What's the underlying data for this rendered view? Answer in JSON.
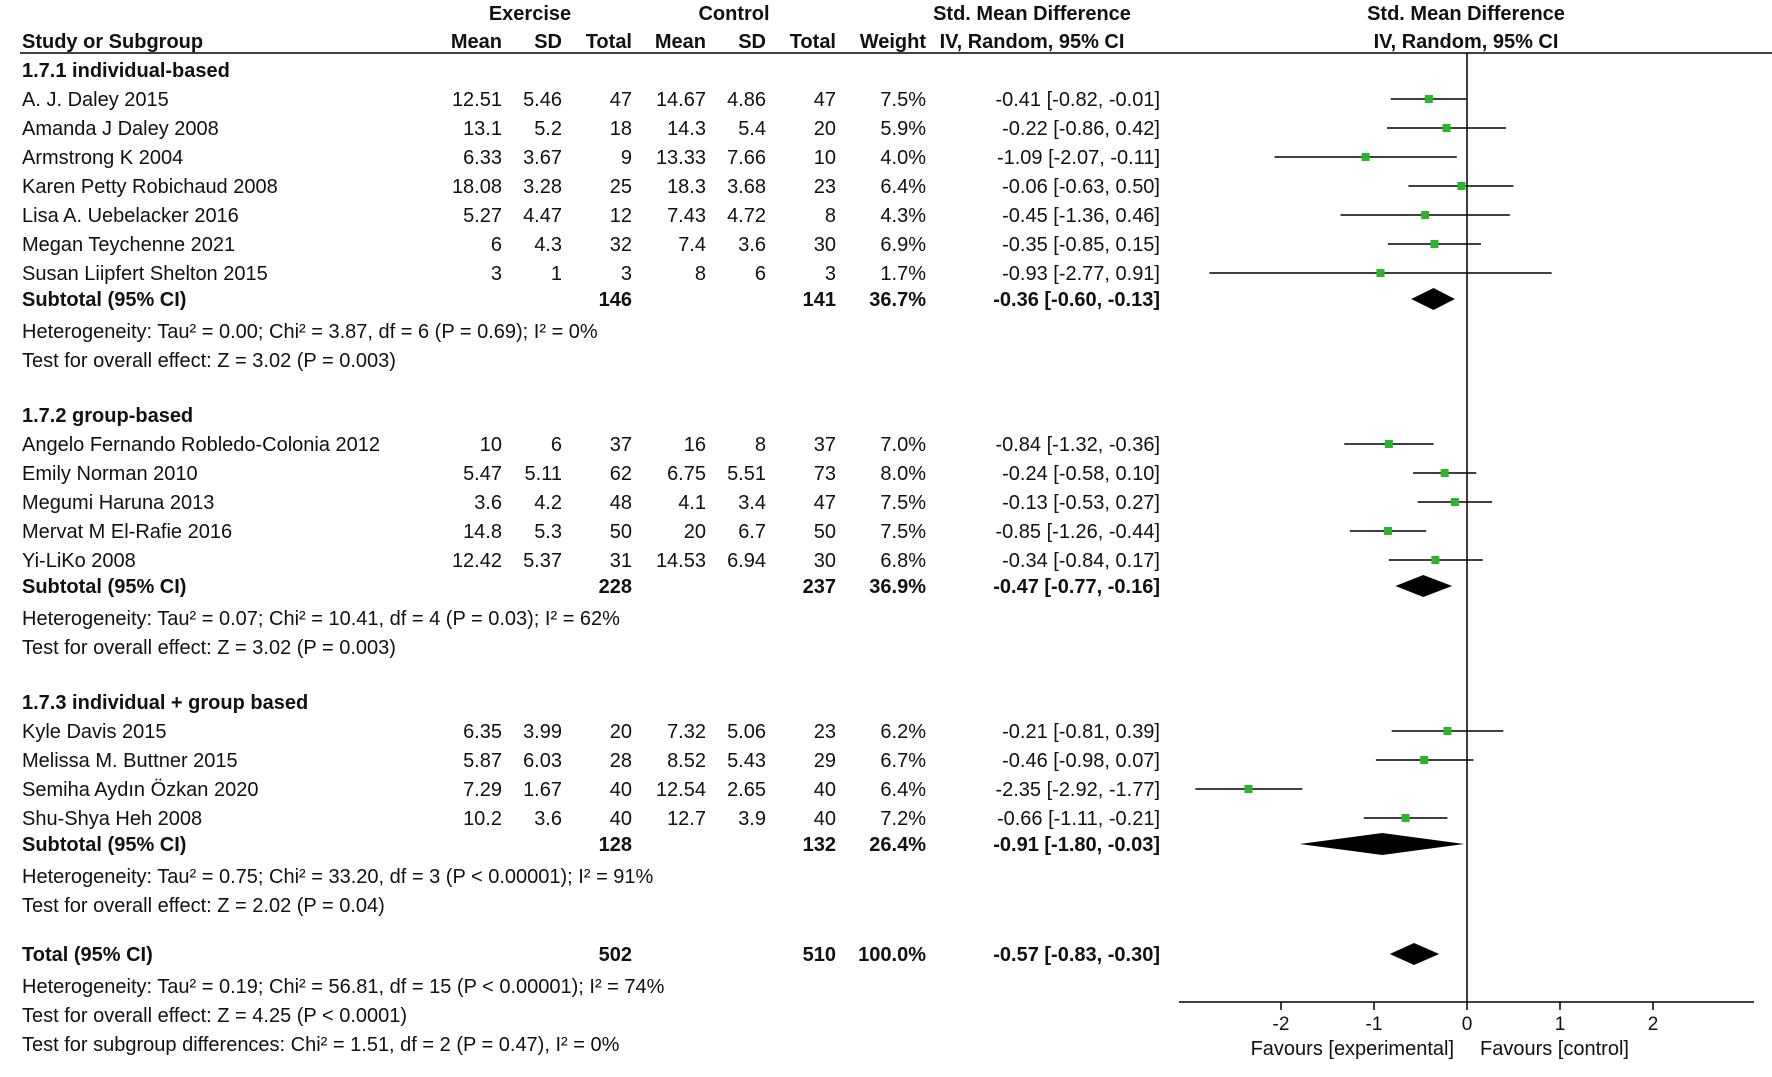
{
  "headers": {
    "group1": "Exercise",
    "group2": "Control",
    "smd_left": "Std. Mean Difference",
    "smd_left_sub": "IV, Random, 95% CI",
    "smd_right": "Std. Mean Difference",
    "smd_right_sub": "IV, Random, 95% CI",
    "study": "Study or Subgroup",
    "mean1": "Mean",
    "sd1": "SD",
    "total1": "Total",
    "mean2": "Mean",
    "sd2": "SD",
    "total2": "Total",
    "weight": "Weight"
  },
  "chart_data": {
    "type": "forest",
    "title": "Std. Mean Difference, IV, Random, 95% CI",
    "x_ticks": [
      -2,
      -1,
      0,
      1,
      2
    ],
    "xlim": [
      -3,
      3
    ],
    "favours_left": "Favours [experimental]",
    "favours_right": "Favours [control]",
    "colors": {
      "study_marker": "#2bb52b",
      "diamond": "#000000",
      "line": "#000000"
    },
    "subgroups": [
      {
        "name": "1.7.1 individual-based",
        "studies": [
          {
            "study": "A. J. Daley 2015",
            "m1": "12.51",
            "sd1": "5.46",
            "n1": "47",
            "m2": "14.67",
            "sd2": "4.86",
            "n2": "47",
            "w": "7.5%",
            "ci_text": "-0.41 [-0.82, -0.01]",
            "est": -0.41,
            "lo": -0.82,
            "hi": -0.01
          },
          {
            "study": "Amanda J Daley 2008",
            "m1": "13.1",
            "sd1": "5.2",
            "n1": "18",
            "m2": "14.3",
            "sd2": "5.4",
            "n2": "20",
            "w": "5.9%",
            "ci_text": "-0.22 [-0.86, 0.42]",
            "est": -0.22,
            "lo": -0.86,
            "hi": 0.42
          },
          {
            "study": "Armstrong K 2004",
            "m1": "6.33",
            "sd1": "3.67",
            "n1": "9",
            "m2": "13.33",
            "sd2": "7.66",
            "n2": "10",
            "w": "4.0%",
            "ci_text": "-1.09 [-2.07, -0.11]",
            "est": -1.09,
            "lo": -2.07,
            "hi": -0.11
          },
          {
            "study": "Karen Petty Robichaud 2008",
            "m1": "18.08",
            "sd1": "3.28",
            "n1": "25",
            "m2": "18.3",
            "sd2": "3.68",
            "n2": "23",
            "w": "6.4%",
            "ci_text": "-0.06 [-0.63, 0.50]",
            "est": -0.06,
            "lo": -0.63,
            "hi": 0.5
          },
          {
            "study": "Lisa A. Uebelacker 2016",
            "m1": "5.27",
            "sd1": "4.47",
            "n1": "12",
            "m2": "7.43",
            "sd2": "4.72",
            "n2": "8",
            "w": "4.3%",
            "ci_text": "-0.45 [-1.36, 0.46]",
            "est": -0.45,
            "lo": -1.36,
            "hi": 0.46
          },
          {
            "study": "Megan Teychenne 2021",
            "m1": "6",
            "sd1": "4.3",
            "n1": "32",
            "m2": "7.4",
            "sd2": "3.6",
            "n2": "30",
            "w": "6.9%",
            "ci_text": "-0.35 [-0.85, 0.15]",
            "est": -0.35,
            "lo": -0.85,
            "hi": 0.15
          },
          {
            "study": "Susan Liipfert Shelton 2015",
            "m1": "3",
            "sd1": "1",
            "n1": "3",
            "m2": "8",
            "sd2": "6",
            "n2": "3",
            "w": "1.7%",
            "ci_text": "-0.93 [-2.77, 0.91]",
            "est": -0.93,
            "lo": -2.77,
            "hi": 0.91
          }
        ],
        "subtotal": {
          "label": "Subtotal (95% CI)",
          "n1": "146",
          "n2": "141",
          "w": "36.7%",
          "ci_text": "-0.36 [-0.60, -0.13]",
          "est": -0.36,
          "lo": -0.6,
          "hi": -0.13
        },
        "heterogeneity": "Heterogeneity: Tau² = 0.00; Chi² = 3.87, df = 6 (P = 0.69); I² = 0%",
        "overall": "Test for overall effect: Z = 3.02 (P = 0.003)"
      },
      {
        "name": "1.7.2 group-based",
        "studies": [
          {
            "study": "Angelo Fernando Robledo-Colonia 2012",
            "m1": "10",
            "sd1": "6",
            "n1": "37",
            "m2": "16",
            "sd2": "8",
            "n2": "37",
            "w": "7.0%",
            "ci_text": "-0.84 [-1.32, -0.36]",
            "est": -0.84,
            "lo": -1.32,
            "hi": -0.36
          },
          {
            "study": "Emily Norman 2010",
            "m1": "5.47",
            "sd1": "5.11",
            "n1": "62",
            "m2": "6.75",
            "sd2": "5.51",
            "n2": "73",
            "w": "8.0%",
            "ci_text": "-0.24 [-0.58, 0.10]",
            "est": -0.24,
            "lo": -0.58,
            "hi": 0.1
          },
          {
            "study": "Megumi Haruna 2013",
            "m1": "3.6",
            "sd1": "4.2",
            "n1": "48",
            "m2": "4.1",
            "sd2": "3.4",
            "n2": "47",
            "w": "7.5%",
            "ci_text": "-0.13 [-0.53, 0.27]",
            "est": -0.13,
            "lo": -0.53,
            "hi": 0.27
          },
          {
            "study": "Mervat M El-Rafie 2016",
            "m1": "14.8",
            "sd1": "5.3",
            "n1": "50",
            "m2": "20",
            "sd2": "6.7",
            "n2": "50",
            "w": "7.5%",
            "ci_text": "-0.85 [-1.26, -0.44]",
            "est": -0.85,
            "lo": -1.26,
            "hi": -0.44
          },
          {
            "study": "Yi-LiKo 2008",
            "m1": "12.42",
            "sd1": "5.37",
            "n1": "31",
            "m2": "14.53",
            "sd2": "6.94",
            "n2": "30",
            "w": "6.8%",
            "ci_text": "-0.34 [-0.84, 0.17]",
            "est": -0.34,
            "lo": -0.84,
            "hi": 0.17
          }
        ],
        "subtotal": {
          "label": "Subtotal (95% CI)",
          "n1": "228",
          "n2": "237",
          "w": "36.9%",
          "ci_text": "-0.47 [-0.77, -0.16]",
          "est": -0.47,
          "lo": -0.77,
          "hi": -0.16
        },
        "heterogeneity": "Heterogeneity: Tau² = 0.07; Chi² = 10.41, df = 4 (P = 0.03); I² = 62%",
        "overall": "Test for overall effect: Z = 3.02 (P = 0.003)"
      },
      {
        "name": "1.7.3 individual + group based",
        "studies": [
          {
            "study": "Kyle Davis 2015",
            "m1": "6.35",
            "sd1": "3.99",
            "n1": "20",
            "m2": "7.32",
            "sd2": "5.06",
            "n2": "23",
            "w": "6.2%",
            "ci_text": "-0.21 [-0.81, 0.39]",
            "est": -0.21,
            "lo": -0.81,
            "hi": 0.39
          },
          {
            "study": "Melissa M. Buttner 2015",
            "m1": "5.87",
            "sd1": "6.03",
            "n1": "28",
            "m2": "8.52",
            "sd2": "5.43",
            "n2": "29",
            "w": "6.7%",
            "ci_text": "-0.46 [-0.98, 0.07]",
            "est": -0.46,
            "lo": -0.98,
            "hi": 0.07
          },
          {
            "study": "Semiha Aydın Özkan 2020",
            "m1": "7.29",
            "sd1": "1.67",
            "n1": "40",
            "m2": "12.54",
            "sd2": "2.65",
            "n2": "40",
            "w": "6.4%",
            "ci_text": "-2.35 [-2.92, -1.77]",
            "est": -2.35,
            "lo": -2.92,
            "hi": -1.77
          },
          {
            "study": "Shu-Shya Heh 2008",
            "m1": "10.2",
            "sd1": "3.6",
            "n1": "40",
            "m2": "12.7",
            "sd2": "3.9",
            "n2": "40",
            "w": "7.2%",
            "ci_text": "-0.66 [-1.11, -0.21]",
            "est": -0.66,
            "lo": -1.11,
            "hi": -0.21
          }
        ],
        "subtotal": {
          "label": "Subtotal (95% CI)",
          "n1": "128",
          "n2": "132",
          "w": "26.4%",
          "ci_text": "-0.91 [-1.80, -0.03]",
          "est": -0.91,
          "lo": -1.8,
          "hi": -0.03
        },
        "heterogeneity": "Heterogeneity: Tau² = 0.75; Chi² = 33.20, df = 3 (P < 0.00001); I² = 91%",
        "overall": "Test for overall effect: Z = 2.02 (P = 0.04)"
      }
    ],
    "total": {
      "label": "Total (95% CI)",
      "n1": "502",
      "n2": "510",
      "w": "100.0%",
      "ci_text": "-0.57 [-0.83, -0.30]",
      "est": -0.57,
      "lo": -0.83,
      "hi": -0.3
    },
    "footer": [
      "Heterogeneity: Tau² = 0.19; Chi² = 56.81, df = 15 (P < 0.00001); I² = 74%",
      "Test for overall effect: Z = 4.25 (P < 0.0001)",
      "Test for subgroup differences: Chi² = 1.51, df = 2 (P = 0.47), I² = 0%"
    ]
  }
}
